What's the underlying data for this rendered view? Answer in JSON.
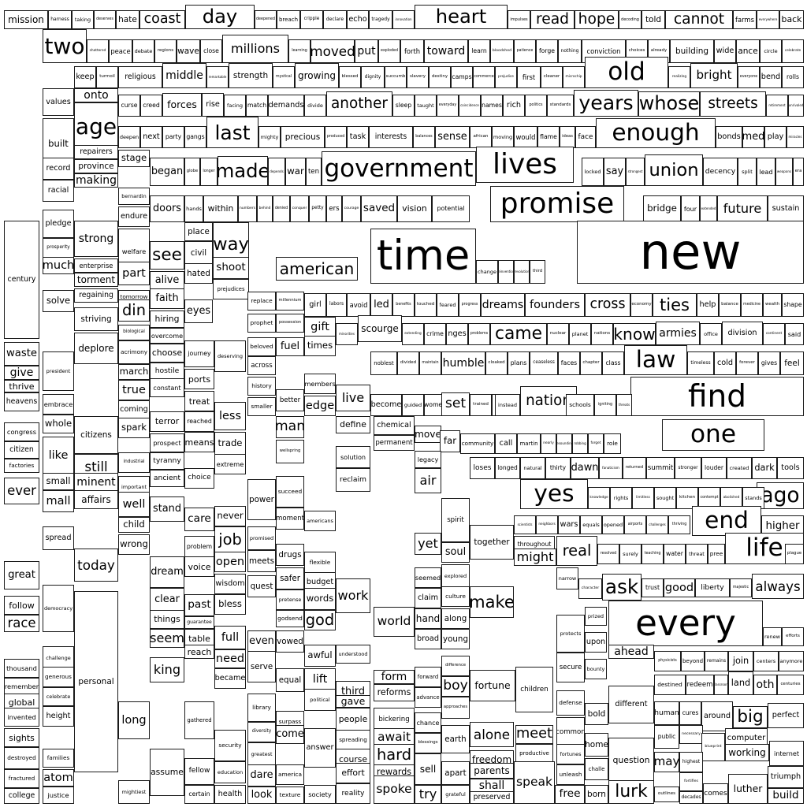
{
  "title": "",
  "colors": {
    "background": "#ffffff",
    "text": "#000000",
    "border": "#1a1a1a"
  },
  "words": [
    "mission",
    "harness",
    "taking",
    "deserves",
    "hate",
    "coast",
    "day",
    "deepened",
    "breach",
    "cripple",
    "declare",
    "echo",
    "tragedy",
    "innovation",
    "heart",
    "impulses",
    "read",
    "hope",
    "decoding",
    "told",
    "cannot",
    "farms",
    "everywhere",
    "back",
    "two",
    "shattered",
    "peace",
    "debate",
    "regions",
    "wave",
    "close",
    "millions",
    "learning",
    "moved",
    "put",
    "exploded",
    "forth",
    "toward",
    "learn",
    "bloodshed",
    "patience",
    "forge",
    "nothing",
    "conviction",
    "choices",
    "already",
    "building",
    "wide",
    "ance",
    "circle",
    "celebrate",
    "keep",
    "turmoil",
    "religious",
    "middle",
    "remarkable",
    "strength",
    "mystical",
    "growing",
    "blessed",
    "dignity",
    "succumb",
    "slavery",
    "destiny",
    "camps",
    "commerce",
    "prejudice",
    "first",
    "cleaner",
    "microchip",
    "old",
    "realizing",
    "bright",
    "everyone",
    "bend",
    "rolls",
    "values",
    "onto",
    "curse",
    "creed",
    "forces",
    "rise",
    "facing",
    "match",
    "demands",
    "divide",
    "another",
    "sleep",
    "taught",
    "everyday",
    "coincidence",
    "names",
    "rich",
    "politics",
    "standards",
    "years",
    "whose",
    "streets",
    "retirement",
    "unrivaled",
    "age",
    "deepen",
    "next",
    "party",
    "gangs",
    "last",
    "mighty",
    "precious",
    "produced",
    "task",
    "interests",
    "balances",
    "sense",
    "african",
    "moving",
    "would",
    "flame",
    "ideas",
    "face",
    "enough",
    "bonds",
    "med",
    "play",
    "miracles",
    "built",
    "repairers",
    "stage",
    "record",
    "province",
    "making",
    "began",
    "globe",
    "longer",
    "made",
    "depends",
    "war",
    "ten",
    "government",
    "lives",
    "locked",
    "say",
    "strongest",
    "union",
    "decency",
    "split",
    "lead",
    "weapons",
    "era",
    "racial",
    "bernardin",
    "endure",
    "doors",
    "hands",
    "within",
    "numbers",
    "behind",
    "denied",
    "conquer",
    "petty",
    "ers",
    "courage",
    "saved",
    "vision",
    "potential",
    "promise",
    "bridge",
    "four",
    "extended",
    "future",
    "sustain",
    "pledge",
    "strong",
    "welfare",
    "place",
    "way",
    "see",
    "civil",
    "prosperity",
    "much",
    "enterprise",
    "part",
    "hated",
    "shoot",
    "american",
    "time",
    "change",
    "reinvention",
    "revolution",
    "third",
    "new",
    "century",
    "torment",
    "alive",
    "prejudices",
    "regaining",
    "tomorrow",
    "din",
    "faith",
    "eyes",
    "replace",
    "millennium",
    "girl",
    "labors",
    "avoid",
    "led",
    "benefits",
    "touched",
    "feared",
    "progress",
    "dreams",
    "founders",
    "cross",
    "economy",
    "ties",
    "help",
    "balance",
    "medicine",
    "wealth",
    "shape",
    "solve",
    "striving",
    "biological",
    "hiring",
    "overcome",
    "prophet",
    "possession",
    "gift",
    "scourge",
    "minorities",
    "extending",
    "crime",
    "nges",
    "problems",
    "came",
    "nuclear",
    "planet",
    "nations",
    "know",
    "armies",
    "office",
    "division",
    "continent",
    "said",
    "waste",
    "deplore",
    "acrimony",
    "choose",
    "journey",
    "deserving",
    "beloved",
    "fuel",
    "times",
    "noblest",
    "divided",
    "maintain",
    "humble",
    "cloaked",
    "plans",
    "ceaseless",
    "faces",
    "chapter",
    "class",
    "law",
    "timeless",
    "cold",
    "forever",
    "gives",
    "feel",
    "give",
    "president",
    "march",
    "hostile",
    "ports",
    "across",
    "members",
    "thrive",
    "true",
    "constant",
    "treat",
    "history",
    "better",
    "live",
    "nation",
    "find",
    "heavens",
    "embrace",
    "coming",
    "smaller",
    "edge",
    "become",
    "guided",
    "women",
    "set",
    "trained",
    "spirits",
    "instead",
    "schools",
    "igniting",
    "threats",
    "congress",
    "whole",
    "spark",
    "terror",
    "reached",
    "less",
    "man",
    "define",
    "chemical",
    "move",
    "one",
    "citizens",
    "prospect",
    "means",
    "trade",
    "permanent",
    "far",
    "community",
    "call",
    "martin",
    "nearly",
    "resounding",
    "robbing",
    "forget",
    "role",
    "citizen",
    "like",
    "industrial",
    "tyranny",
    "extreme",
    "wellspring",
    "solution",
    "legacy",
    "factories",
    "still",
    "ancient",
    "choice",
    "loses",
    "longed",
    "natural",
    "thirty",
    "dawn",
    "fanaticism",
    "returned",
    "summit",
    "stronger",
    "louder",
    "created",
    "dark",
    "tools",
    "ever",
    "small",
    "minent",
    "important",
    "reclaim",
    "air",
    "succeed",
    "mall",
    "affairs",
    "well",
    "power",
    "yes",
    "ago",
    "knowledge",
    "rights",
    "limitless",
    "sought",
    "kitchen",
    "contempt",
    "abolished",
    "stands",
    "child",
    "stand",
    "care",
    "never",
    "moment",
    "spirit",
    "end",
    "scientists",
    "neighbors",
    "wars",
    "equals",
    "opened",
    "airports",
    "challenges",
    "thriving",
    "higher",
    "spread",
    "wrong",
    "job",
    "promised",
    "americans",
    "together",
    "life",
    "throughout",
    "real",
    "resolved",
    "surely",
    "teaching",
    "water",
    "threat",
    "pree",
    "plague",
    "today",
    "dream",
    "problem",
    "meets",
    "drugs",
    "flexible",
    "yet",
    "might",
    "voice",
    "open",
    "soul",
    "great",
    "wisdom",
    "quest",
    "safer",
    "budget",
    "seemed",
    "explored",
    "narrow",
    "character",
    "ask",
    "trust",
    "good",
    "liberty",
    "majestic",
    "always",
    "follow",
    "democracy",
    "clear",
    "bless",
    "pretense",
    "words",
    "work",
    "claim",
    "culture",
    "make",
    "race",
    "things",
    "past",
    "guarantee",
    "godsend",
    "god",
    "world",
    "hand",
    "along",
    "every",
    "seem",
    "table",
    "full",
    "even",
    "vowed",
    "awful",
    "broad",
    "young",
    "prized",
    "renew",
    "efforts",
    "thousand",
    "challenge",
    "reach",
    "understood",
    "difference",
    "protects",
    "upon",
    "ahead",
    "physicists",
    "beyond",
    "remains",
    "join",
    "centers",
    "anymore",
    "generous",
    "king",
    "need",
    "serve",
    "equal",
    "lift",
    "forward",
    "bounty",
    "secure",
    "remember",
    "became",
    "form",
    "boy",
    "fortune",
    "children",
    "land",
    "oth",
    "centuries",
    "global",
    "celebrate",
    "third",
    "advance",
    "reforms",
    "destined",
    "redeem",
    "classroom",
    "invented",
    "height",
    "library",
    "political",
    "approaches",
    "bold",
    "around",
    "big",
    "perfect",
    "long",
    "people",
    "gave",
    "defense",
    "different",
    "human",
    "cures",
    "diversity",
    "surpass",
    "bickering",
    "chance",
    "computer",
    "sights",
    "gathered",
    "come",
    "spreading",
    "await",
    "blessings",
    "earth",
    "alone",
    "common",
    "necessary",
    "public",
    "working",
    "destroyed",
    "families",
    "security",
    "greatest",
    "answer",
    "course",
    "hard",
    "meet",
    "blueprint",
    "internet",
    "home",
    "fortunes",
    "question",
    "may",
    "highest",
    "personal",
    "america",
    "freedom",
    "productive",
    "challe",
    "fractured",
    "atom",
    "assume",
    "fellow",
    "education",
    "dare",
    "effort",
    "rewards",
    "windows",
    "sell",
    "parents",
    "unleash",
    "fortifies",
    "triumph",
    "lurk",
    "shall",
    "outlines",
    "college",
    "justice",
    "mightiest",
    "certain",
    "health",
    "look",
    "texture",
    "society",
    "reality",
    "spoke",
    "try",
    "grateful",
    "apart",
    "preserved",
    "speak",
    "free",
    "born",
    "decades",
    "comes",
    "luther",
    "build",
    "immigrants"
  ]
}
